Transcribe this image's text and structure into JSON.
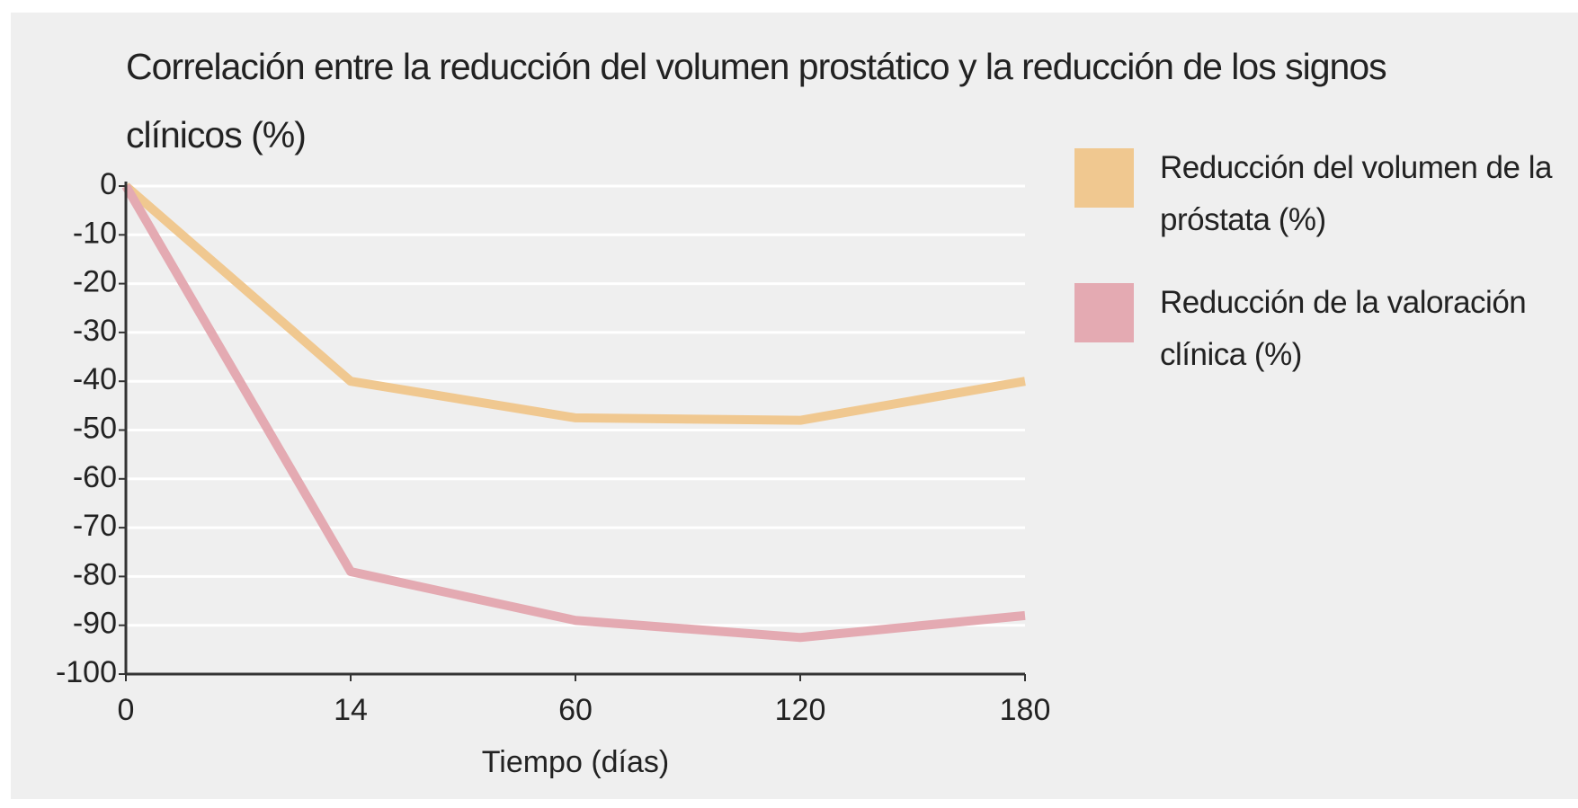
{
  "chart_data": {
    "type": "line",
    "title": "Correlación entre la reducción del volumen prostático y la reducción de los signos clínicos (%)",
    "x_label": "Tiempo (días)",
    "categories": [
      "0",
      "14",
      "60",
      "120",
      "180"
    ],
    "series": [
      {
        "name": "Reducción del volumen de la próstata (%)",
        "color": "#f0c890",
        "values": [
          0,
          -40,
          -47.5,
          -48,
          -40
        ]
      },
      {
        "name": "Reducción de la valoración clínica (%)",
        "color": "#e4aab2",
        "values": [
          0,
          -79,
          -89,
          -92.5,
          -88
        ]
      }
    ],
    "ylim": [
      -100,
      0
    ],
    "yticks": [
      0,
      -10,
      -20,
      -30,
      -40,
      -50,
      -60,
      -70,
      -80,
      -90,
      -100
    ],
    "grid": true
  }
}
